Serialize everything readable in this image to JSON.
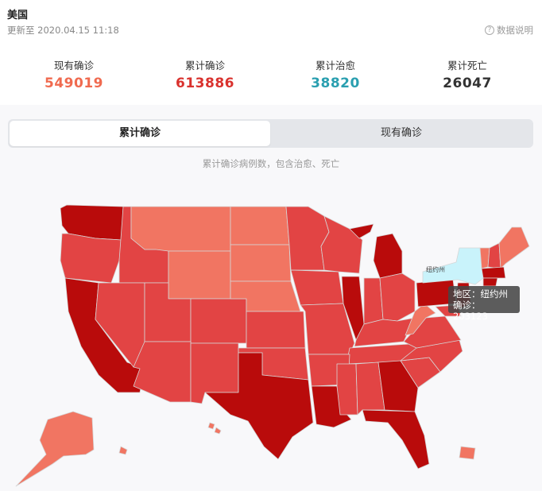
{
  "header": {
    "title": "美国",
    "updated": "更新至 2020.04.15 11:18",
    "explain_label": "数据说明"
  },
  "stats": [
    {
      "label": "现有确诊",
      "value": "549019",
      "color": "#f06a4f"
    },
    {
      "label": "累计确诊",
      "value": "613886",
      "color": "#d9322e"
    },
    {
      "label": "累计治愈",
      "value": "38820",
      "color": "#2a9fb0"
    },
    {
      "label": "累计死亡",
      "value": "26047",
      "color": "#333333"
    }
  ],
  "tabs": [
    {
      "label": "累计确诊",
      "active": true
    },
    {
      "label": "现有确诊",
      "active": false
    }
  ],
  "caption": "累计确诊病例数，包含治愈、死亡",
  "map": {
    "highlight_label": "纽约州",
    "tooltip": {
      "region_line": "地区：纽约州",
      "confirmed_line": "确诊：203123"
    },
    "colors": {
      "darkest": "#b90b0b",
      "dark": "#e24444",
      "medium": "#f17562",
      "selected": "#c9f3fb",
      "border": "#d6d6d6"
    }
  }
}
